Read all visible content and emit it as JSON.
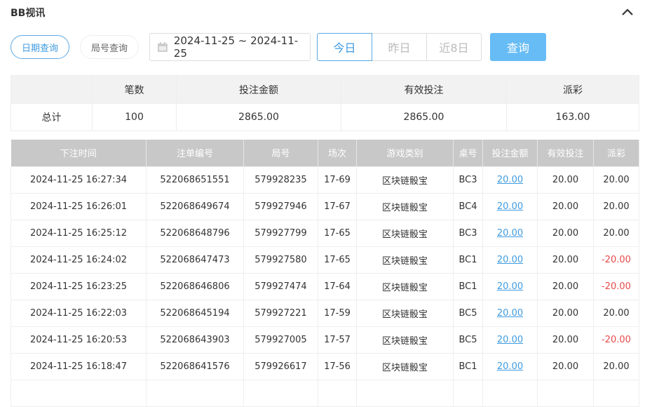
{
  "title": "BB视讯",
  "tabs": {
    "date_query": "日期查询",
    "round_query": "局号查询"
  },
  "date_range": "2024-11-25 ~ 2024-11-25",
  "quick": [
    "今日",
    "昨日",
    "近8日"
  ],
  "quick_active": 0,
  "query_label": "查询",
  "summary": {
    "headers": [
      "",
      "笔数",
      "投注金额",
      "有效投注",
      "派彩"
    ],
    "row": [
      "总计",
      "100",
      "2865.00",
      "2865.00",
      "163.00"
    ]
  },
  "columns": [
    "下注时间",
    "注单编号",
    "局号",
    "场次",
    "游戏类别",
    "桌号",
    "投注金额",
    "有效投注",
    "派彩"
  ],
  "rows": [
    [
      "2024-11-25 16:27:34",
      "522068651551",
      "579928235",
      "17-69",
      "区块链骰宝",
      "BC3",
      "20.00",
      "20.00",
      "20.00"
    ],
    [
      "2024-11-25 16:26:01",
      "522068649674",
      "579927946",
      "17-67",
      "区块链骰宝",
      "BC4",
      "20.00",
      "20.00",
      "20.00"
    ],
    [
      "2024-11-25 16:25:12",
      "522068648796",
      "579927799",
      "17-65",
      "区块链骰宝",
      "BC3",
      "20.00",
      "20.00",
      "20.00"
    ],
    [
      "2024-11-25 16:24:02",
      "522068647473",
      "579927580",
      "17-65",
      "区块链骰宝",
      "BC1",
      "20.00",
      "20.00",
      "-20.00"
    ],
    [
      "2024-11-25 16:23:25",
      "522068646806",
      "579927474",
      "17-64",
      "区块链骰宝",
      "BC1",
      "20.00",
      "20.00",
      "-20.00"
    ],
    [
      "2024-11-25 16:22:03",
      "522068645194",
      "579927221",
      "17-59",
      "区块链骰宝",
      "BC5",
      "20.00",
      "20.00",
      "20.00"
    ],
    [
      "2024-11-25 16:20:53",
      "522068643903",
      "579927005",
      "17-57",
      "区块链骰宝",
      "BC5",
      "20.00",
      "20.00",
      "-20.00"
    ],
    [
      "2024-11-25 16:18:47",
      "522068641576",
      "579926617",
      "17-56",
      "区块链骰宝",
      "BC1",
      "20.00",
      "20.00",
      "20.00"
    ],
    [
      "",
      "",
      "",
      "",
      "",
      "",
      "",
      "",
      ""
    ]
  ],
  "colors": {
    "accent": "#3f9be0",
    "button": "#67bcf5",
    "negative": "#e84a4a",
    "header": "#c8c8c8"
  }
}
